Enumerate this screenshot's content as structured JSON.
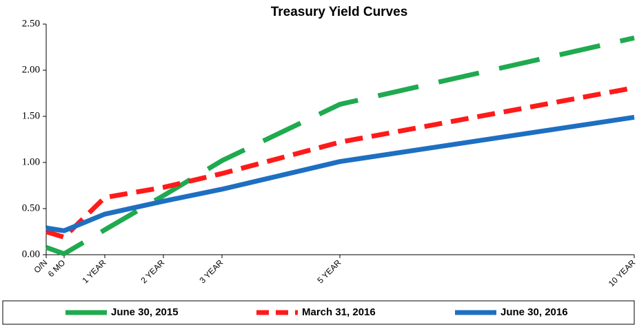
{
  "chart_data": {
    "type": "line",
    "title": "Treasury Yield Curves",
    "categories": [
      "O/N",
      "6 MO",
      "1 YEAR",
      "2 YEAR",
      "3 YEAR",
      "5 YEAR",
      "10 YEAR"
    ],
    "series": [
      {
        "name": "June 30, 2015",
        "color": "#1faa50",
        "values": [
          0.08,
          0.01,
          0.27,
          0.64,
          1.02,
          1.63,
          2.35
        ]
      },
      {
        "name": "March 31, 2016",
        "color": "#ff1a1a",
        "values": [
          0.25,
          0.19,
          0.62,
          0.73,
          0.88,
          1.22,
          1.81
        ]
      },
      {
        "name": "June 30, 2016",
        "color": "#1e6fc1",
        "values": [
          0.29,
          0.26,
          0.44,
          0.58,
          0.71,
          1.01,
          1.49
        ]
      }
    ],
    "ylim": [
      0,
      2.5
    ],
    "yticks": [
      {
        "value": 0,
        "label": "0.00"
      },
      {
        "value": 0.5,
        "label": "0.50"
      },
      {
        "value": 1,
        "label": "1.00"
      },
      {
        "value": 1.5,
        "label": "1.50"
      },
      {
        "value": 2,
        "label": "2.00"
      },
      {
        "value": 2.5,
        "label": "2.50"
      }
    ],
    "legend": "bottom"
  }
}
